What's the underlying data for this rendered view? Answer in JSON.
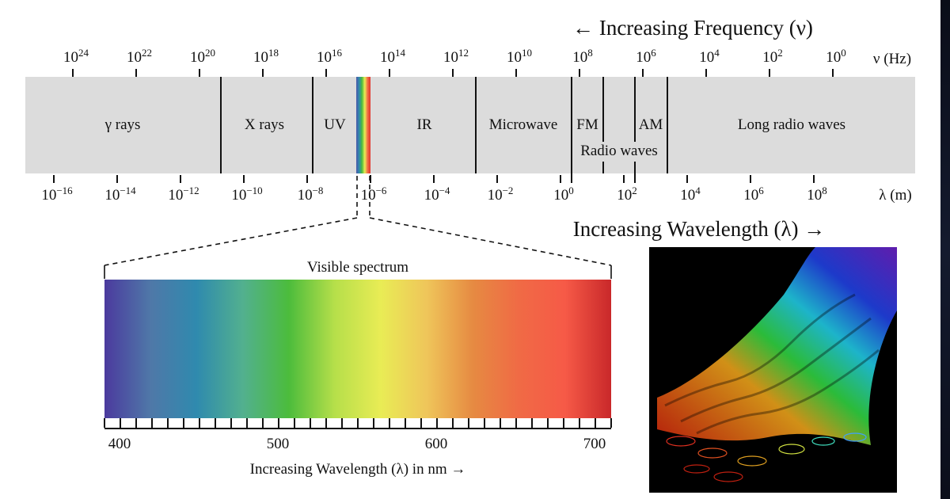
{
  "frequency_title": "← Increasing Frequency (ν)",
  "wavelength_title": "Increasing Wavelength (λ) →",
  "frequency_unit": "ν (Hz)",
  "wavelength_unit": "λ (m)",
  "frequency_ticks": [
    {
      "base": "10",
      "exp": "24"
    },
    {
      "base": "10",
      "exp": "22"
    },
    {
      "base": "10",
      "exp": "20"
    },
    {
      "base": "10",
      "exp": "18"
    },
    {
      "base": "10",
      "exp": "16"
    },
    {
      "base": "10",
      "exp": "14"
    },
    {
      "base": "10",
      "exp": "12"
    },
    {
      "base": "10",
      "exp": "10"
    },
    {
      "base": "10",
      "exp": "8"
    },
    {
      "base": "10",
      "exp": "6"
    },
    {
      "base": "10",
      "exp": "4"
    },
    {
      "base": "10",
      "exp": "2"
    },
    {
      "base": "10",
      "exp": "0"
    }
  ],
  "wavelength_ticks": [
    {
      "base": "10",
      "exp": "−16"
    },
    {
      "base": "10",
      "exp": "−14"
    },
    {
      "base": "10",
      "exp": "−12"
    },
    {
      "base": "10",
      "exp": "−10"
    },
    {
      "base": "10",
      "exp": "−8"
    },
    {
      "base": "10",
      "exp": "−6"
    },
    {
      "base": "10",
      "exp": "−4"
    },
    {
      "base": "10",
      "exp": "−2"
    },
    {
      "base": "10",
      "exp": "0"
    },
    {
      "base": "10",
      "exp": "2"
    },
    {
      "base": "10",
      "exp": "4"
    },
    {
      "base": "10",
      "exp": "6"
    },
    {
      "base": "10",
      "exp": "8"
    }
  ],
  "bands": {
    "gamma": "γ rays",
    "xray": "X rays",
    "uv": "UV",
    "ir": "IR",
    "microwave": "Microwave",
    "fm": "FM",
    "am": "AM",
    "radio": "Radio waves",
    "long": "Long radio waves"
  },
  "visible": {
    "title": "Visible spectrum",
    "ticks": [
      "400",
      "500",
      "600",
      "700"
    ],
    "axis_label": "Increasing Wavelength (λ) in nm →",
    "colors": [
      "#4b3a9e",
      "#4f78a8",
      "#2f8aae",
      "#52b08f",
      "#4cbc3c",
      "#b6df4a",
      "#e9ec55",
      "#efc55a",
      "#e68a42",
      "#f06a45",
      "#f65a47",
      "#c9282a"
    ]
  },
  "colors": {
    "band_fill": "#dcdcdc"
  }
}
